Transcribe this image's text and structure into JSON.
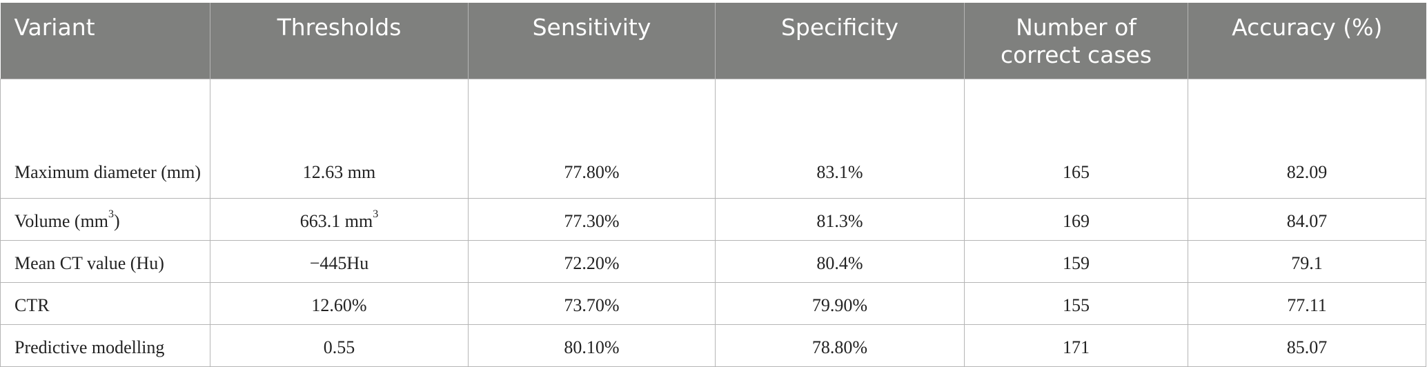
{
  "table": {
    "headers": [
      "Variant",
      "Thresholds",
      "Sensitivity",
      "Specificity",
      "Number of correct cases",
      "Accuracy (%)"
    ],
    "rows": [
      {
        "variant": "Maximum diameter (mm)",
        "threshold": "12.63 mm",
        "sensitivity": "77.80%",
        "specificity": "83.1%",
        "correct_cases": "165",
        "accuracy": "82.09"
      },
      {
        "variant": "Volume (mm",
        "variant_sup": "3",
        "variant_suffix": ")",
        "threshold": "663.1 mm",
        "threshold_sup": "3",
        "sensitivity": "77.30%",
        "specificity": "81.3%",
        "correct_cases": "169",
        "accuracy": "84.07"
      },
      {
        "variant": "Mean CT value (Hu)",
        "threshold": "−445Hu",
        "sensitivity": "72.20%",
        "specificity": "80.4%",
        "correct_cases": "159",
        "accuracy": "79.1"
      },
      {
        "variant": "CTR",
        "threshold": "12.60%",
        "sensitivity": "73.70%",
        "specificity": "79.90%",
        "correct_cases": "155",
        "accuracy": "77.11"
      },
      {
        "variant": "Predictive modelling",
        "threshold": "0.55",
        "sensitivity": "80.10%",
        "specificity": "78.80%",
        "correct_cases": "171",
        "accuracy": "85.07"
      }
    ]
  }
}
